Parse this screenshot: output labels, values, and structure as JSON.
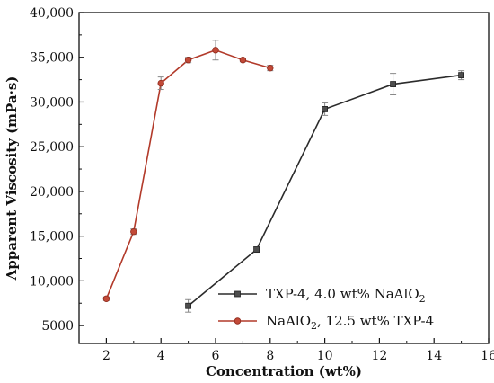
{
  "chart_data": {
    "type": "line",
    "title": "",
    "xlabel": "Concentration (wt%)",
    "ylabel": "Apparent Viscosity (mPa·s)",
    "xlim": [
      1,
      16
    ],
    "ylim": [
      3000,
      40000
    ],
    "x_ticks": [
      2,
      4,
      6,
      8,
      10,
      12,
      14,
      16
    ],
    "x_tick_labels": [
      "2",
      "4",
      "6",
      "8",
      "10",
      "12",
      "14",
      "16"
    ],
    "y_ticks": [
      5000,
      10000,
      15000,
      20000,
      25000,
      30000,
      35000,
      40000
    ],
    "y_tick_labels": [
      "5000",
      "10,000",
      "15,000",
      "20,000",
      "25,000",
      "30,000",
      "35,000",
      "40,000"
    ],
    "grid": false,
    "legend_position": "bottom-right",
    "series": [
      {
        "name_main": "TXP-4, 4.0 wt% NaAlO",
        "name_sub": "2",
        "name_tail": "",
        "color": "#2b2b2b",
        "marker": "square",
        "x": [
          5,
          7.5,
          10,
          12.5,
          15
        ],
        "y": [
          7200,
          13500,
          29200,
          32000,
          33000
        ],
        "err": [
          700,
          300,
          700,
          1200,
          500
        ]
      },
      {
        "name_main": "NaAlO",
        "name_sub": "2",
        "name_tail": ", 12.5 wt% TXP-4",
        "color": "#b23a2a",
        "marker": "circle",
        "x": [
          2,
          3,
          4,
          5,
          6,
          7,
          8
        ],
        "y": [
          8000,
          15500,
          32100,
          34700,
          35800,
          34700,
          33800
        ],
        "err": [
          200,
          300,
          700,
          300,
          1100,
          200,
          300
        ]
      }
    ]
  }
}
